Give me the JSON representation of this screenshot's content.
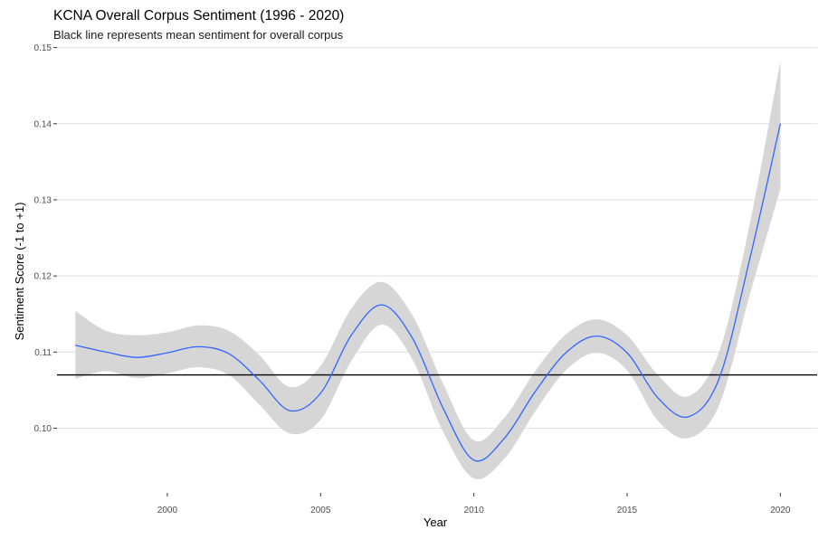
{
  "chart_data": {
    "type": "line",
    "title": "KCNA Overall Corpus Sentiment (1996 - 2020)",
    "subtitle": "Black line represents mean sentiment for overall corpus",
    "xlabel": "Year",
    "ylabel": "Sentiment Score (-1 to +1)",
    "xlim": [
      1996.4,
      2021.2
    ],
    "ylim": [
      0.0915,
      0.1515
    ],
    "x_ticks": [
      2000,
      2005,
      2010,
      2015,
      2020
    ],
    "y_ticks": [
      0.1,
      0.11,
      0.12,
      0.13,
      0.14,
      0.15
    ],
    "y_tick_labels": [
      "0.10",
      "0.11",
      "0.12",
      "0.13",
      "0.14",
      "0.15"
    ],
    "grid": "horizontal major",
    "mean_line": 0.107,
    "colors": {
      "smooth": "#3366ff",
      "ribbon": "#d4d4d4",
      "mean": "#000000",
      "grid": "#e0e0e0"
    },
    "smooth": {
      "x": [
        1997,
        1998,
        1999,
        2000,
        2001,
        2002,
        2003,
        2004,
        2005,
        2006,
        2007,
        2008,
        2009,
        2010,
        2011,
        2012,
        2013,
        2014,
        2015,
        2016,
        2017,
        2018,
        2019,
        2020
      ],
      "y": [
        0.1109,
        0.11,
        0.1093,
        0.1099,
        0.1107,
        0.1098,
        0.1063,
        0.1023,
        0.1046,
        0.1122,
        0.1162,
        0.1118,
        0.1026,
        0.0958,
        0.0987,
        0.1048,
        0.1099,
        0.1121,
        0.1099,
        0.104,
        0.1015,
        0.1065,
        0.1222,
        0.14
      ],
      "lower": [
        0.1065,
        0.1075,
        0.1066,
        0.1072,
        0.108,
        0.107,
        0.1031,
        0.0993,
        0.1011,
        0.1088,
        0.1136,
        0.109,
        0.0995,
        0.0934,
        0.096,
        0.1022,
        0.1076,
        0.1099,
        0.1076,
        0.101,
        0.0987,
        0.103,
        0.1175,
        0.1314
      ],
      "upper": [
        0.1154,
        0.1128,
        0.1122,
        0.1126,
        0.1135,
        0.1128,
        0.1096,
        0.1054,
        0.1082,
        0.1157,
        0.1192,
        0.1148,
        0.1058,
        0.0984,
        0.1014,
        0.1075,
        0.1123,
        0.1143,
        0.1122,
        0.107,
        0.1042,
        0.11,
        0.1268,
        0.1482
      ]
    }
  }
}
